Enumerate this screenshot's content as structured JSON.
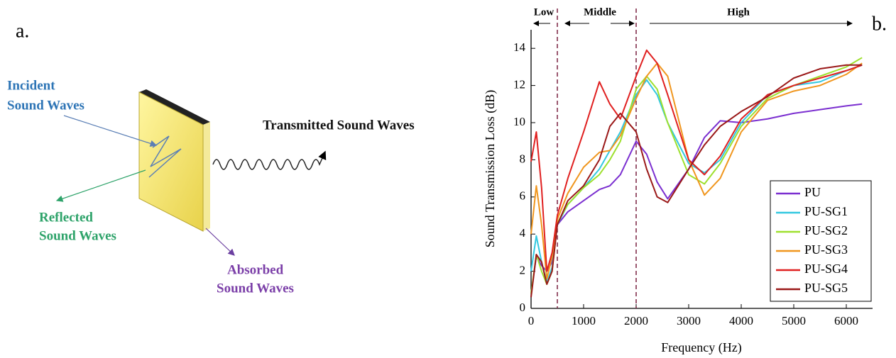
{
  "diagram": {
    "label": "a.",
    "incident": [
      "Incident",
      "Sound Waves"
    ],
    "transmitted": "Transmitted Sound Waves",
    "reflected": [
      "Reflected",
      "Sound Waves"
    ],
    "absorbed": [
      "Absorbed",
      "Sound Waves"
    ]
  },
  "chart_data": {
    "type": "line",
    "panel_label": "b.",
    "x_label": "Frequency (Hz)",
    "y_label": "Sound Transmission Loss (dB)",
    "regions": [
      "Low",
      "Middle",
      "High"
    ],
    "boundaries": [
      500,
      2000
    ],
    "xlim": [
      0,
      6500
    ],
    "ylim": [
      0,
      15
    ],
    "xticks": [
      0,
      1000,
      2000,
      3000,
      4000,
      5000,
      6000
    ],
    "yticks": [
      0,
      2,
      4,
      6,
      8,
      10,
      12,
      14
    ],
    "legend": "lower right",
    "x": [
      0,
      100,
      200,
      300,
      400,
      500,
      700,
      1000,
      1300,
      1500,
      1700,
      2000,
      2200,
      2400,
      2600,
      3000,
      3300,
      3600,
      4000,
      4500,
      5000,
      5500,
      6000,
      6300
    ],
    "series": [
      {
        "name": "PU",
        "color": "#7b2fd0",
        "values": [
          0.8,
          2.8,
          2.3,
          2.0,
          2.5,
          4.5,
          5.2,
          5.8,
          6.4,
          6.6,
          7.2,
          9.0,
          8.3,
          6.8,
          5.9,
          7.5,
          9.2,
          10.1,
          10.0,
          10.2,
          10.5,
          10.7,
          10.9,
          11.0
        ]
      },
      {
        "name": "PU-SG1",
        "color": "#33c8e0",
        "values": [
          2.0,
          3.9,
          2.5,
          1.4,
          2.2,
          4.5,
          5.6,
          6.5,
          7.5,
          8.5,
          9.5,
          11.5,
          12.3,
          11.5,
          10.0,
          7.8,
          7.3,
          8.0,
          10.0,
          11.5,
          12.0,
          12.2,
          12.8,
          13.1
        ]
      },
      {
        "name": "PU-SG2",
        "color": "#9ee02e",
        "values": [
          0.8,
          2.9,
          2.0,
          1.3,
          2.0,
          4.6,
          5.6,
          6.5,
          7.2,
          8.0,
          9.0,
          11.8,
          12.5,
          11.8,
          10.0,
          7.2,
          6.7,
          7.8,
          9.8,
          11.3,
          12.0,
          12.5,
          13.0,
          13.5
        ]
      },
      {
        "name": "PU-SG3",
        "color": "#f0961e",
        "values": [
          4.0,
          6.6,
          4.5,
          1.6,
          2.8,
          4.8,
          6.2,
          7.6,
          8.4,
          8.5,
          9.3,
          11.3,
          12.5,
          13.2,
          12.5,
          8.0,
          6.1,
          7.0,
          9.5,
          11.2,
          11.7,
          12.0,
          12.6,
          13.2
        ]
      },
      {
        "name": "PU-SG4",
        "color": "#e02020",
        "values": [
          7.9,
          9.5,
          6.5,
          2.0,
          3.0,
          5.0,
          7.0,
          9.5,
          12.2,
          11.0,
          10.2,
          12.5,
          13.9,
          13.2,
          11.5,
          8.0,
          7.2,
          8.2,
          10.2,
          11.5,
          12.0,
          12.4,
          12.8,
          13.1
        ]
      },
      {
        "name": "PU-SG5",
        "color": "#9a1818",
        "values": [
          0.6,
          2.9,
          2.5,
          1.3,
          2.0,
          4.5,
          5.8,
          6.6,
          8.0,
          9.8,
          10.5,
          9.5,
          7.5,
          6.0,
          5.7,
          7.5,
          8.8,
          9.8,
          10.6,
          11.4,
          12.4,
          12.9,
          13.1,
          13.1
        ]
      }
    ]
  }
}
